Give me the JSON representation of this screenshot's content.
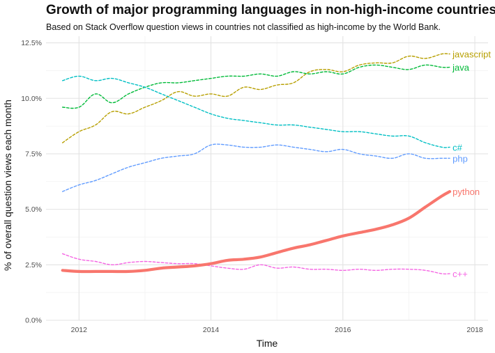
{
  "chart_data": {
    "type": "line",
    "title": "Growth of major programming languages in non-high-income countries",
    "subtitle": "Based on Stack Overflow question views in countries not classified as high-income by the World Bank.",
    "xlabel": "Time",
    "ylabel": "% of overall question views each month",
    "xlim": [
      2011.5,
      2018.2
    ],
    "ylim": [
      0,
      12.8
    ],
    "x_ticks": [
      2012,
      2014,
      2016,
      2018
    ],
    "x_tick_labels": [
      "2012",
      "2014",
      "2016",
      "2018"
    ],
    "y_ticks": [
      0,
      2.5,
      5,
      7.5,
      10,
      12.5
    ],
    "y_tick_labels": [
      "0.0%",
      "2.5%",
      "5.0%",
      "7.5%",
      "10.0%",
      "12.5%"
    ],
    "grid": true,
    "legend": "direct labels at line ends",
    "x": [
      2011.75,
      2012.0,
      2012.25,
      2012.5,
      2012.75,
      2013.0,
      2013.25,
      2013.5,
      2013.75,
      2014.0,
      2014.25,
      2014.5,
      2014.75,
      2015.0,
      2015.25,
      2015.5,
      2015.75,
      2016.0,
      2016.25,
      2016.5,
      2016.75,
      2017.0,
      2017.25,
      2017.5,
      2017.62
    ],
    "series": [
      {
        "name": "javascript",
        "color": "#B79F00",
        "style": "dashed",
        "values": [
          8.0,
          8.5,
          8.8,
          9.4,
          9.3,
          9.6,
          9.9,
          10.3,
          10.1,
          10.2,
          10.1,
          10.5,
          10.4,
          10.6,
          10.7,
          11.2,
          11.3,
          11.2,
          11.5,
          11.6,
          11.6,
          11.9,
          11.8,
          12.0,
          12.0
        ]
      },
      {
        "name": "java",
        "color": "#00BA38",
        "style": "dashed",
        "values": [
          9.6,
          9.6,
          10.2,
          9.8,
          10.2,
          10.5,
          10.7,
          10.7,
          10.8,
          10.9,
          11.0,
          11.0,
          11.1,
          11.0,
          11.2,
          11.1,
          11.2,
          11.1,
          11.4,
          11.5,
          11.4,
          11.3,
          11.5,
          11.4,
          11.4
        ]
      },
      {
        "name": "c#",
        "color": "#00BFC4",
        "style": "dashed",
        "values": [
          10.8,
          11.0,
          10.8,
          10.9,
          10.7,
          10.5,
          10.2,
          9.9,
          9.6,
          9.3,
          9.1,
          9.0,
          8.9,
          8.8,
          8.8,
          8.7,
          8.6,
          8.5,
          8.5,
          8.4,
          8.3,
          8.3,
          8.0,
          7.8,
          7.8
        ]
      },
      {
        "name": "php",
        "color": "#619CFF",
        "style": "dashed",
        "values": [
          5.8,
          6.1,
          6.3,
          6.6,
          6.9,
          7.1,
          7.3,
          7.4,
          7.5,
          7.9,
          7.9,
          7.8,
          7.8,
          7.9,
          7.8,
          7.7,
          7.6,
          7.7,
          7.5,
          7.4,
          7.3,
          7.5,
          7.3,
          7.3,
          7.3
        ]
      },
      {
        "name": "python",
        "color": "#F8766D",
        "style": "solid-thick",
        "values": [
          2.25,
          2.2,
          2.2,
          2.2,
          2.2,
          2.25,
          2.35,
          2.4,
          2.45,
          2.55,
          2.7,
          2.75,
          2.85,
          3.05,
          3.25,
          3.4,
          3.6,
          3.8,
          3.95,
          4.1,
          4.3,
          4.6,
          5.1,
          5.6,
          5.8
        ]
      },
      {
        "name": "c++",
        "color": "#F564E3",
        "style": "dashed",
        "values": [
          3.0,
          2.75,
          2.65,
          2.5,
          2.6,
          2.65,
          2.6,
          2.55,
          2.55,
          2.45,
          2.35,
          2.3,
          2.5,
          2.35,
          2.4,
          2.3,
          2.3,
          2.25,
          2.3,
          2.25,
          2.3,
          2.3,
          2.25,
          2.1,
          2.1
        ]
      }
    ]
  }
}
